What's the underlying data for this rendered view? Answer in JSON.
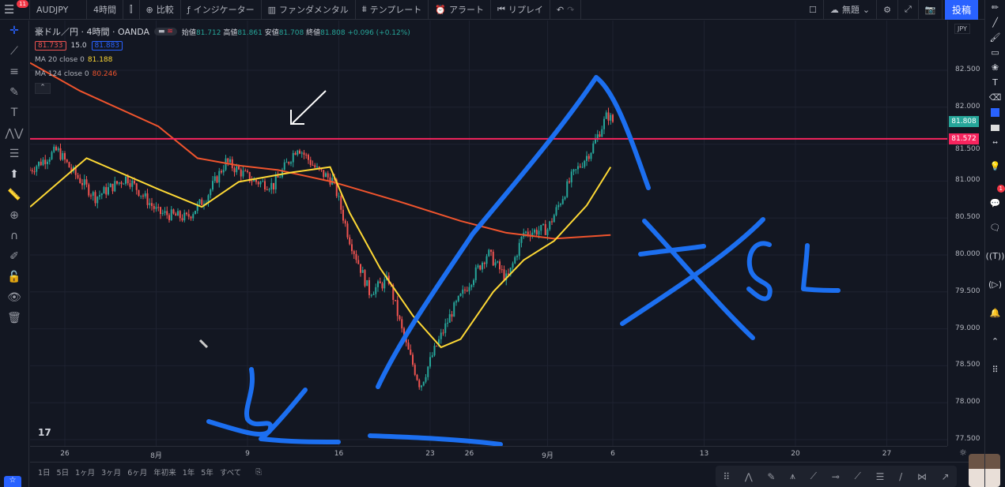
{
  "topbar": {
    "notifications": "11",
    "symbol": "AUDJPY",
    "interval": "4時間",
    "compare": "比較",
    "indicators": "インジケーター",
    "fundamentals": "ファンダメンタル",
    "templates": "テンプレート",
    "alerts": "アラート",
    "replay": "リプレイ",
    "layout_name": "無題",
    "post": "投稿"
  },
  "legend": {
    "title": "豪ドル／円 · 4時間 · OANDA",
    "open_label": "始値",
    "open": "81.712",
    "high_label": "高値",
    "high": "81.861",
    "low_label": "安値",
    "low": "81.708",
    "close_label": "終値",
    "close": "81.808",
    "change": "+0.096 (+0.12%)",
    "bid": "81.733",
    "spread": "15.0",
    "ask": "81.883",
    "ma20_label": "MA 20 close 0",
    "ma20_value": "81.188",
    "ma124_label": "MA 124 close 0",
    "ma124_value": "80.246"
  },
  "price_axis": {
    "currency": "JPY",
    "ticks": [
      "82.500",
      "82.000",
      "81.500",
      "81.000",
      "80.500",
      "80.000",
      "79.500",
      "79.000",
      "78.500",
      "78.000",
      "77.500"
    ],
    "last_price": "81.808",
    "line_price": "81.572"
  },
  "time_axis": {
    "ticks": [
      {
        "label": "26",
        "d": "07-26"
      },
      {
        "label": "8月",
        "d": "08-02"
      },
      {
        "label": "9",
        "d": "08-09"
      },
      {
        "label": "16",
        "d": "08-16"
      },
      {
        "label": "23",
        "d": "08-23"
      },
      {
        "label": "26",
        "d": "08-26"
      },
      {
        "label": "9月",
        "d": "09-01"
      },
      {
        "label": "6",
        "d": "09-06"
      },
      {
        "label": "13",
        "d": "09-13"
      },
      {
        "label": "20",
        "d": "09-20"
      },
      {
        "label": "27",
        "d": "09-27"
      }
    ]
  },
  "ranges": [
    "1日",
    "5日",
    "1ヶ月",
    "3ヶ月",
    "6ヶ月",
    "年初来",
    "1年",
    "5年",
    "すべて"
  ],
  "colors": {
    "up": "#26a69a",
    "down": "#ef5350",
    "ma20": "#fdd835",
    "ma124": "#f0542d",
    "hline": "#f7245e",
    "drawing": "#1c6ff0",
    "accent": "#2962ff"
  },
  "chart_data": {
    "type": "candlestick",
    "interval": "4h",
    "price_path": [
      [
        "07-23 08",
        81.15
      ],
      [
        "07-25 10",
        81.42
      ],
      [
        "07-26 12",
        81.15
      ],
      [
        "07-28 08",
        80.78
      ],
      [
        "07-30 18",
        81.05
      ],
      [
        "08-02 04",
        80.57
      ],
      [
        "08-04 08",
        80.5
      ],
      [
        "08-05 20",
        80.78
      ],
      [
        "08-07 08",
        81.26
      ],
      [
        "08-09 12",
        81.0
      ],
      [
        "08-11 00",
        80.94
      ],
      [
        "08-12 20",
        81.47
      ],
      [
        "08-14 08",
        81.15
      ],
      [
        "08-15 14",
        81.0
      ],
      [
        "08-16 18",
        80.25
      ],
      [
        "08-18 08",
        79.5
      ],
      [
        "08-19 20",
        79.66
      ],
      [
        "08-21 00",
        78.86
      ],
      [
        "08-22 06",
        78.22
      ],
      [
        "08-23 04",
        78.64
      ],
      [
        "08-24 16",
        79.23
      ],
      [
        "08-25 22",
        79.6
      ],
      [
        "08-27 10",
        80.03
      ],
      [
        "08-28 22",
        79.66
      ],
      [
        "08-30 04",
        80.3
      ],
      [
        "09-01 00",
        80.35
      ],
      [
        "09-02 20",
        81.05
      ],
      [
        "09-04 08",
        81.42
      ],
      [
        "09-05 14",
        81.9
      ],
      [
        "09-06 00",
        81.808
      ]
    ],
    "ma20": [
      [
        "07-23 08",
        80.65
      ],
      [
        "07-27 16",
        81.31
      ],
      [
        "08-02 04",
        80.89
      ],
      [
        "08-05 12",
        80.65
      ],
      [
        "08-08 08",
        80.99
      ],
      [
        "08-12 12",
        81.12
      ],
      [
        "08-15 08",
        81.19
      ],
      [
        "08-16 20",
        80.57
      ],
      [
        "08-19 04",
        79.82
      ],
      [
        "08-21 16",
        79.18
      ],
      [
        "08-23 20",
        78.75
      ],
      [
        "08-25 08",
        78.86
      ],
      [
        "08-27 20",
        79.5
      ],
      [
        "08-30 04",
        79.93
      ],
      [
        "09-01 12",
        80.19
      ],
      [
        "09-04 00",
        80.67
      ],
      [
        "09-05 20",
        81.19
      ]
    ],
    "ma124": [
      [
        "07-23 08",
        82.6
      ],
      [
        "07-27 04",
        82.22
      ],
      [
        "08-02 04",
        81.74
      ],
      [
        "08-05 04",
        81.31
      ],
      [
        "08-08 08",
        81.21
      ],
      [
        "08-11 08",
        81.15
      ],
      [
        "08-15 12",
        80.99
      ],
      [
        "08-20 12",
        80.73
      ],
      [
        "08-25 08",
        80.46
      ],
      [
        "08-28 20",
        80.3
      ],
      [
        "09-01 12",
        80.22
      ],
      [
        "09-05 20",
        80.27
      ]
    ],
    "horizontal_line": 81.572,
    "ylim": [
      77.4,
      82.95
    ]
  }
}
